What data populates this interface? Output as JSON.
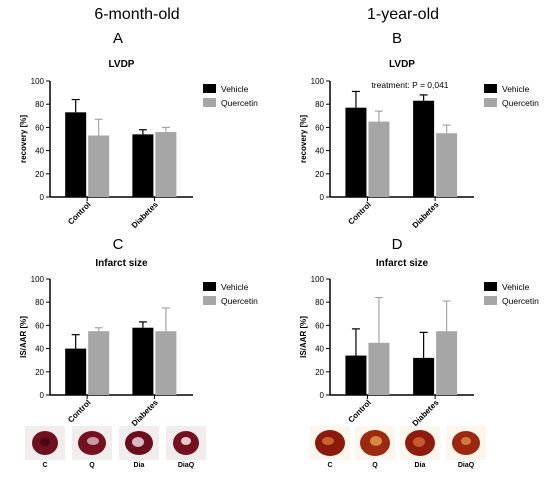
{
  "columns": [
    {
      "title": "6-month-old"
    },
    {
      "title": "1-year-old"
    }
  ],
  "panels": [
    "A",
    "B",
    "C",
    "D"
  ],
  "colors": {
    "vehicle": "#000000",
    "quercetin": "#a6a6a6",
    "axis": "#000000"
  },
  "chart_data": [
    {
      "type": "bar",
      "panel": "A",
      "title": "LVDP",
      "xlabel": "",
      "ylabel": "recovery [%]",
      "ylim": [
        0,
        100
      ],
      "yticks": [
        0,
        20,
        40,
        60,
        80,
        100
      ],
      "categories": [
        "Control",
        "Diabetes"
      ],
      "annotation": "",
      "series": [
        {
          "name": "Vehicle",
          "values": [
            73,
            54
          ],
          "errors": [
            11,
            4
          ]
        },
        {
          "name": "Quercetin",
          "values": [
            53,
            56
          ],
          "errors": [
            14,
            4
          ]
        }
      ],
      "legend": "right"
    },
    {
      "type": "bar",
      "panel": "B",
      "title": "LVDP",
      "xlabel": "",
      "ylabel": "recovery [%]",
      "ylim": [
        0,
        100
      ],
      "yticks": [
        0,
        20,
        40,
        60,
        80,
        100
      ],
      "categories": [
        "Control",
        "Diabetes"
      ],
      "annotation": "treatment: P = 0,041",
      "series": [
        {
          "name": "Vehicle",
          "values": [
            77,
            83
          ],
          "errors": [
            14,
            5
          ]
        },
        {
          "name": "Quercetin",
          "values": [
            65,
            55
          ],
          "errors": [
            9,
            7
          ]
        }
      ],
      "legend": "right"
    },
    {
      "type": "bar",
      "panel": "C",
      "title": "Infarct size",
      "xlabel": "",
      "ylabel": "IS/AAR [%]",
      "ylim": [
        0,
        100
      ],
      "yticks": [
        0,
        20,
        40,
        60,
        80,
        100
      ],
      "categories": [
        "Control",
        "Diabetes"
      ],
      "annotation": "",
      "series": [
        {
          "name": "Vehicle",
          "values": [
            40,
            58
          ],
          "errors": [
            12,
            5
          ]
        },
        {
          "name": "Quercetin",
          "values": [
            55,
            55
          ],
          "errors": [
            3,
            20
          ]
        }
      ],
      "legend": "right"
    },
    {
      "type": "bar",
      "panel": "D",
      "title": "Infarct size",
      "xlabel": "",
      "ylabel": "IS/AAR [%]",
      "ylim": [
        0,
        100
      ],
      "yticks": [
        0,
        20,
        40,
        60,
        80,
        100
      ],
      "categories": [
        "Control",
        "Diabetes"
      ],
      "annotation": "",
      "series": [
        {
          "name": "Vehicle",
          "values": [
            34,
            32
          ],
          "errors": [
            23,
            22
          ]
        },
        {
          "name": "Quercetin",
          "values": [
            45,
            55
          ],
          "errors": [
            39,
            26
          ]
        }
      ],
      "legend": "right"
    }
  ],
  "thumbnails": [
    {
      "group": "6-month-old",
      "labels": [
        "C",
        "Q",
        "Dia",
        "DiaQ"
      ]
    },
    {
      "group": "1-year-old",
      "labels": [
        "C",
        "Q",
        "Dia",
        "DiaQ"
      ]
    }
  ]
}
